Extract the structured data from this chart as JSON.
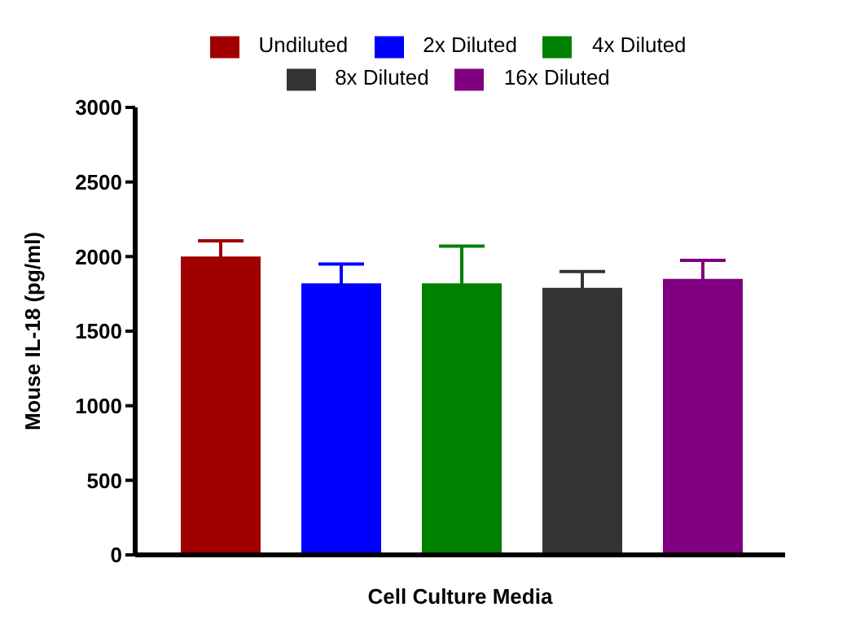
{
  "chart_data": {
    "type": "bar",
    "xlabel": "Cell Culture Media",
    "ylabel": "Mouse IL-18 (pg/ml)",
    "categories": [
      null
    ],
    "series": [
      {
        "name": "Undiluted",
        "color": "#a00000",
        "values": [
          2000
        ],
        "errors": [
          105
        ]
      },
      {
        "name": "2x Diluted",
        "color": "#0000ff",
        "values": [
          1820
        ],
        "errors": [
          130
        ]
      },
      {
        "name": "4x Diluted",
        "color": "#008000",
        "values": [
          1820
        ],
        "errors": [
          250
        ]
      },
      {
        "name": "8x Diluted",
        "color": "#333333",
        "values": [
          1790
        ],
        "errors": [
          110
        ]
      },
      {
        "name": "16x Diluted",
        "color": "#800080",
        "values": [
          1850
        ],
        "errors": [
          125
        ]
      }
    ],
    "ylim": [
      0,
      3000
    ],
    "yticks": [
      0,
      500,
      1000,
      1500,
      2000,
      2500,
      3000
    ],
    "grid": false,
    "legend": "top"
  }
}
